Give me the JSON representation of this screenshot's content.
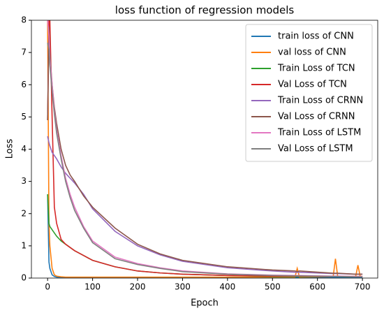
{
  "chart_data": {
    "type": "line",
    "title": "loss function of regression models",
    "x_label": "Epoch",
    "y_label": "Loss",
    "x": [
      0,
      3,
      5,
      10,
      15,
      20,
      30,
      40,
      50,
      60,
      80,
      100,
      150,
      200,
      250,
      300,
      400,
      500,
      550,
      555,
      560,
      635,
      640,
      645,
      685,
      690,
      695,
      700
    ],
    "series": [
      {
        "name": "train loss of CNN",
        "color": "#1f77b4",
        "values": [
          2.6,
          0.5,
          0.3,
          0.1,
          0.05,
          0.03,
          0.02,
          0.02,
          0.02,
          0.02,
          0.02,
          0.02,
          0.02,
          0.02,
          0.02,
          0.02,
          0.02,
          0.02,
          0.02,
          0.02,
          0.02,
          0.02,
          0.02,
          0.02,
          0.02,
          0.02,
          0.02,
          0.02
        ]
      },
      {
        "name": "val loss of CNN",
        "color": "#ff7f0e",
        "values": [
          8,
          1.7,
          1.0,
          0.3,
          0.1,
          0.06,
          0.04,
          0.03,
          0.03,
          0.03,
          0.03,
          0.03,
          0.03,
          0.03,
          0.03,
          0.03,
          0.03,
          0.03,
          0.03,
          0.3,
          0.03,
          0.05,
          0.6,
          0.05,
          0.05,
          0.4,
          0.05,
          0.05
        ]
      },
      {
        "name": "Train Loss of TCN",
        "color": "#2ca02c",
        "values": [
          2.6,
          1.7,
          1.6,
          1.5,
          1.4,
          1.3,
          1.15,
          1.05,
          0.95,
          0.85,
          0.7,
          0.55,
          0.35,
          0.22,
          0.16,
          0.12,
          0.08,
          0.05,
          0.05,
          0.05,
          0.05,
          0.05,
          0.05,
          0.05,
          0.04,
          0.04,
          0.04,
          0.04
        ]
      },
      {
        "name": "Val Loss  of TCN",
        "color": "#d62728",
        "values": [
          4.9,
          8,
          8,
          5,
          2.2,
          1.7,
          1.2,
          1.05,
          0.95,
          0.85,
          0.7,
          0.55,
          0.35,
          0.22,
          0.16,
          0.12,
          0.08,
          0.06,
          0.06,
          0.06,
          0.06,
          0.05,
          0.05,
          0.05,
          0.05,
          0.05,
          0.05,
          0.05
        ]
      },
      {
        "name": "Train Loss of CRNN",
        "color": "#9467bd",
        "values": [
          4.4,
          4.2,
          4.1,
          3.9,
          3.8,
          3.7,
          3.45,
          3.25,
          3.1,
          2.95,
          2.6,
          2.15,
          1.45,
          1.0,
          0.72,
          0.52,
          0.32,
          0.22,
          0.18,
          0.18,
          0.18,
          0.14,
          0.14,
          0.14,
          0.12,
          0.12,
          0.12,
          0.12
        ]
      },
      {
        "name": "Val Loss  of CRNN",
        "color": "#8c564b",
        "values": [
          4.9,
          7.8,
          7.0,
          6.0,
          5.3,
          4.8,
          4.0,
          3.5,
          3.2,
          3.0,
          2.55,
          2.2,
          1.55,
          1.05,
          0.75,
          0.55,
          0.35,
          0.25,
          0.22,
          0.2,
          0.22,
          0.15,
          0.15,
          0.15,
          0.12,
          0.12,
          0.12,
          0.12
        ]
      },
      {
        "name": "Train Loss of LSTM",
        "color": "#e377c2",
        "values": [
          8,
          7.5,
          6.8,
          6.0,
          5.2,
          4.6,
          3.8,
          3.1,
          2.6,
          2.2,
          1.6,
          1.15,
          0.65,
          0.45,
          0.32,
          0.22,
          0.13,
          0.09,
          0.08,
          0.08,
          0.08,
          0.06,
          0.06,
          0.06,
          0.05,
          0.05,
          0.05,
          0.05
        ]
      },
      {
        "name": "Val Loss of LSTM",
        "color": "#7f7f7f",
        "values": [
          7.3,
          7.1,
          6.6,
          5.8,
          5.1,
          4.5,
          3.7,
          3.0,
          2.5,
          2.1,
          1.55,
          1.1,
          0.6,
          0.42,
          0.3,
          0.2,
          0.12,
          0.08,
          0.07,
          0.07,
          0.07,
          0.05,
          0.05,
          0.05,
          0.04,
          0.04,
          0.04,
          0.04
        ]
      }
    ],
    "xlim": [
      -36,
      734
    ],
    "ylim": [
      0,
      8
    ],
    "xticks": [
      0,
      100,
      200,
      300,
      400,
      500,
      600,
      700
    ],
    "yticks": [
      0,
      1,
      2,
      3,
      4,
      5,
      6,
      7,
      8
    ],
    "legend": "upper right",
    "grid": false
  }
}
